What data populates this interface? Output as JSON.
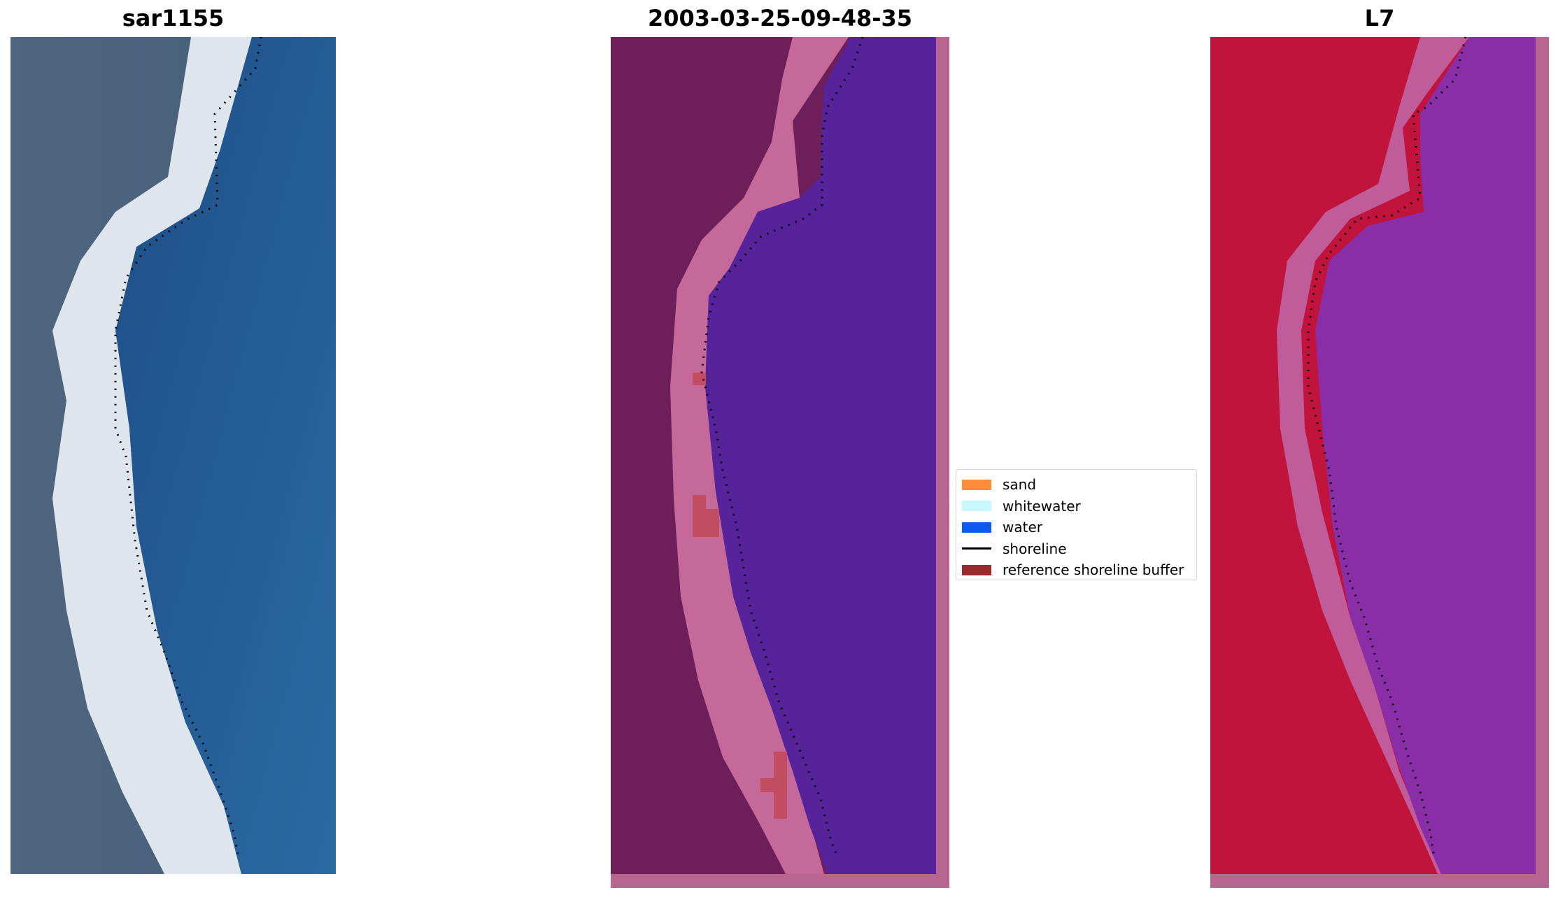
{
  "chart_data": [
    {
      "type": "image",
      "title": "sar1155",
      "colors": {
        "land": "#445f78",
        "beach": "#dfe5ec",
        "water": "#1f4e86",
        "shoreline": "#000000"
      }
    },
    {
      "type": "image",
      "title": "2003-03-25-09-48-35",
      "colors": {
        "land": "#6e1f5a",
        "beach": "#c5689a",
        "water": "#56239a",
        "buffer_overlay": "#b8658f",
        "classified_sand": "#c24d63",
        "shoreline": "#000000"
      }
    },
    {
      "type": "image",
      "title": "L7",
      "colors": {
        "land": "#c0143c",
        "beach": "#c05c9a",
        "water": "#8a2ea8",
        "buffer_overlay": "#b8658f",
        "shoreline": "#000000"
      }
    }
  ],
  "legend": {
    "items": [
      {
        "label": "sand",
        "color": "#ff8c3a",
        "kind": "patch"
      },
      {
        "label": "whitewater",
        "color": "#c8f8ff",
        "kind": "patch"
      },
      {
        "label": "water",
        "color": "#0a5cf0",
        "kind": "patch"
      },
      {
        "label": "shoreline",
        "color": "#000000",
        "kind": "line"
      },
      {
        "label": "reference shoreline buffer",
        "color": "#9b2a2e",
        "kind": "patch"
      }
    ]
  }
}
